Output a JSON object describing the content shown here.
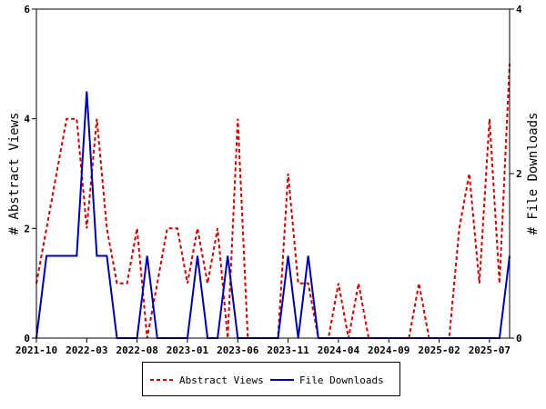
{
  "chart_data": {
    "type": "line",
    "categories": [
      "2021-10",
      "2021-11",
      "2021-12",
      "2022-01",
      "2022-02",
      "2022-03",
      "2022-04",
      "2022-05",
      "2022-06",
      "2022-07",
      "2022-08",
      "2022-09",
      "2022-10",
      "2022-11",
      "2022-12",
      "2023-01",
      "2023-02",
      "2023-03",
      "2023-04",
      "2023-05",
      "2023-06",
      "2023-07",
      "2023-08",
      "2023-09",
      "2023-10",
      "2023-11",
      "2023-12",
      "2024-01",
      "2024-02",
      "2024-03",
      "2024-04",
      "2024-05",
      "2024-06",
      "2024-07",
      "2024-08",
      "2024-09",
      "2024-10",
      "2024-11",
      "2024-12",
      "2025-01",
      "2025-02",
      "2025-03",
      "2025-04",
      "2025-05",
      "2025-06",
      "2025-07",
      "2025-08",
      "2025-09"
    ],
    "x_tick_labels": [
      "2021-10",
      "2022-03",
      "2022-08",
      "2023-01",
      "2023-06",
      "2023-11",
      "2024-04",
      "2024-09",
      "2025-02",
      "2025-07"
    ],
    "series": [
      {
        "name": "Abstract Views",
        "axis": "left",
        "color": "#cc0000",
        "dash": "dashed",
        "values": [
          1,
          2,
          3,
          4,
          4,
          2,
          4,
          2,
          1,
          1,
          2,
          0,
          1,
          2,
          2,
          1,
          2,
          1,
          2,
          0,
          4,
          0,
          0,
          0,
          0,
          3,
          1,
          1,
          0,
          0,
          1,
          0,
          1,
          0,
          0,
          0,
          0,
          0,
          1,
          0,
          0,
          0,
          2,
          3,
          1,
          4,
          1,
          5
        ]
      },
      {
        "name": "File Downloads",
        "axis": "right",
        "color": "#0000aa",
        "dash": "solid",
        "values": [
          0,
          1,
          1,
          1,
          1,
          3,
          1,
          1,
          0,
          0,
          0,
          1,
          0,
          0,
          0,
          0,
          1,
          0,
          0,
          1,
          0,
          0,
          0,
          0,
          0,
          1,
          0,
          1,
          0,
          0,
          0,
          0,
          0,
          0,
          0,
          0,
          0,
          0,
          0,
          0,
          0,
          0,
          0,
          0,
          0,
          0,
          0,
          1
        ]
      }
    ],
    "ylabel": "# Abstract Views",
    "y2label": "# File Downloads",
    "ylim": [
      0,
      6
    ],
    "y2lim": [
      0,
      4
    ],
    "yticks": [
      "0",
      "2",
      "4",
      "6"
    ],
    "y2ticks": [
      "0",
      "2",
      "4"
    ],
    "grid": false,
    "legend_position": "bottom"
  },
  "legend": {
    "views_label": "Abstract Views",
    "downloads_label": "File Downloads"
  }
}
